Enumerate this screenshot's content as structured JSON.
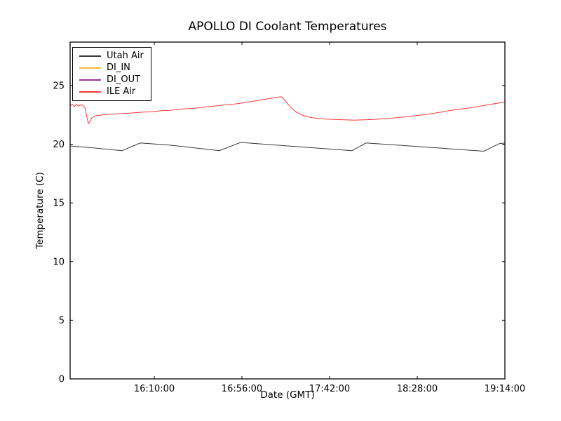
{
  "chart_data": {
    "type": "line",
    "title": "APOLLO DI Coolant Temperatures",
    "xlabel": "Date (GMT)",
    "ylabel": "Temperature (C)",
    "x_unit": "decimal hours GMT",
    "xlim": [
      15.4306,
      19.2333
    ],
    "ylim": [
      0,
      28.7
    ],
    "grid": false,
    "legend_position": "upper left",
    "frame_color": "#000000",
    "background_color": "#ffffff",
    "x_ticks": [
      {
        "value": 16.1667,
        "label": "16:10:00"
      },
      {
        "value": 16.9333,
        "label": "16:56:00"
      },
      {
        "value": 17.7,
        "label": "17:42:00"
      },
      {
        "value": 18.4667,
        "label": "18:28:00"
      },
      {
        "value": 19.2333,
        "label": "19:14:00"
      }
    ],
    "y_ticks": [
      {
        "value": 0,
        "label": "0"
      },
      {
        "value": 5,
        "label": "5"
      },
      {
        "value": 10,
        "label": "10"
      },
      {
        "value": 15,
        "label": "15"
      },
      {
        "value": 20,
        "label": "20"
      },
      {
        "value": 25,
        "label": "25"
      }
    ],
    "series": [
      {
        "name": "Utah Air",
        "color": "#000000",
        "points": [
          [
            15.4306,
            19.85
          ],
          [
            15.6,
            19.72
          ],
          [
            15.884,
            19.45
          ],
          [
            16.044,
            20.1
          ],
          [
            16.3,
            19.93
          ],
          [
            16.737,
            19.45
          ],
          [
            16.921,
            20.15
          ],
          [
            17.271,
            19.9
          ],
          [
            17.896,
            19.45
          ],
          [
            18.018,
            20.1
          ],
          [
            18.4,
            19.85
          ],
          [
            19.049,
            19.4
          ],
          [
            19.184,
            20.05
          ],
          [
            19.2333,
            20.1
          ]
        ]
      },
      {
        "name": "DI_IN",
        "color": "#ffa500",
        "points": [
          [
            15.4306,
            0
          ],
          [
            19.2333,
            0
          ]
        ]
      },
      {
        "name": "DI_OUT",
        "color": "#800080",
        "points": [
          [
            15.4306,
            0
          ],
          [
            19.2333,
            0
          ]
        ]
      },
      {
        "name": "ILE Air",
        "color": "#ff0000",
        "points": [
          [
            15.4306,
            23.25
          ],
          [
            15.449,
            23.4
          ],
          [
            15.467,
            23.2
          ],
          [
            15.486,
            23.4
          ],
          [
            15.504,
            23.25
          ],
          [
            15.523,
            23.35
          ],
          [
            15.541,
            23.3
          ],
          [
            15.559,
            23.15
          ],
          [
            15.578,
            22.3
          ],
          [
            15.59,
            21.75
          ],
          [
            15.602,
            21.9
          ],
          [
            15.621,
            22.25
          ],
          [
            15.645,
            22.4
          ],
          [
            15.707,
            22.5
          ],
          [
            15.86,
            22.6
          ],
          [
            15.95,
            22.65
          ],
          [
            16.044,
            22.72
          ],
          [
            16.14,
            22.76
          ],
          [
            16.228,
            22.85
          ],
          [
            16.32,
            22.9
          ],
          [
            16.412,
            23.0
          ],
          [
            16.5,
            23.05
          ],
          [
            16.596,
            23.15
          ],
          [
            16.69,
            23.25
          ],
          [
            16.78,
            23.35
          ],
          [
            16.87,
            23.42
          ],
          [
            16.964,
            23.55
          ],
          [
            17.087,
            23.75
          ],
          [
            17.179,
            23.9
          ],
          [
            17.222,
            23.95
          ],
          [
            17.246,
            24.0
          ],
          [
            17.271,
            24.05
          ],
          [
            17.289,
            23.95
          ],
          [
            17.32,
            23.6
          ],
          [
            17.363,
            23.1
          ],
          [
            17.412,
            22.7
          ],
          [
            17.467,
            22.45
          ],
          [
            17.547,
            22.25
          ],
          [
            17.639,
            22.15
          ],
          [
            17.761,
            22.1
          ],
          [
            17.915,
            22.05
          ],
          [
            18.068,
            22.1
          ],
          [
            18.221,
            22.2
          ],
          [
            18.375,
            22.35
          ],
          [
            18.559,
            22.55
          ],
          [
            18.742,
            22.85
          ],
          [
            18.926,
            23.1
          ],
          [
            19.08,
            23.35
          ],
          [
            19.172,
            23.5
          ],
          [
            19.2333,
            23.6
          ]
        ]
      }
    ]
  }
}
